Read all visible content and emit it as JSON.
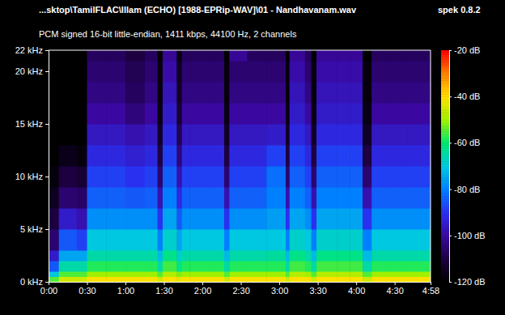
{
  "chart_data": {
    "type": "heatmap",
    "title": "...sktop\\TamilFLAC\\Illam (ECHO) [1988-EPRip-WAV]\\01 - Nandhavanam.wav",
    "subtitle": "PCM signed 16-bit little-endian, 1411 kbps, 44100 Hz, 2 channels",
    "annotations": [
      "spek 0.8.2"
    ],
    "xlim": [
      0,
      298
    ],
    "ylim": [
      0,
      22
    ],
    "xticks": [
      {
        "value": 0,
        "label": "0:00"
      },
      {
        "value": 30,
        "label": "0:30"
      },
      {
        "value": 60,
        "label": "1:00"
      },
      {
        "value": 90,
        "label": "1:30"
      },
      {
        "value": 120,
        "label": "2:00"
      },
      {
        "value": 150,
        "label": "2:30"
      },
      {
        "value": 180,
        "label": "3:00"
      },
      {
        "value": 210,
        "label": "3:30"
      },
      {
        "value": 240,
        "label": "4:00"
      },
      {
        "value": 270,
        "label": "4:30"
      },
      {
        "value": 298,
        "label": "4:58"
      }
    ],
    "yticks": [
      {
        "value": 0,
        "label": "0 kHz"
      },
      {
        "value": 5,
        "label": "5 kHz"
      },
      {
        "value": 10,
        "label": "10 kHz"
      },
      {
        "value": 15,
        "label": "15 kHz"
      },
      {
        "value": 20,
        "label": "20 kHz"
      },
      {
        "value": 22,
        "label": "22 kHz"
      }
    ],
    "x_edges": [
      0,
      8,
      15,
      22,
      30,
      45,
      60,
      75,
      85,
      89,
      100,
      104,
      110,
      125,
      137,
      141,
      155,
      170,
      185,
      188,
      200,
      205,
      209,
      225,
      235,
      245,
      252,
      265,
      280,
      298
    ],
    "y_edges": [
      0,
      0.5,
      1,
      2,
      3,
      5,
      7,
      9,
      11,
      13,
      15,
      17,
      19,
      21,
      22
    ],
    "z": [
      [
        -55,
        -45,
        -45,
        -45,
        -40,
        -40,
        -40,
        -40,
        -45,
        -40,
        -42,
        -40,
        -40,
        -40,
        -45,
        -40,
        -40,
        -40,
        -45,
        -40,
        -40,
        -45,
        -40,
        -40,
        -40,
        -45,
        -40,
        -40,
        -40
      ],
      [
        -70,
        -55,
        -55,
        -55,
        -50,
        -50,
        -50,
        -50,
        -55,
        -48,
        -52,
        -50,
        -50,
        -50,
        -55,
        -50,
        -50,
        -50,
        -55,
        -48,
        -50,
        -55,
        -48,
        -48,
        -48,
        -55,
        -50,
        -50,
        -50
      ],
      [
        -85,
        -65,
        -65,
        -65,
        -58,
        -58,
        -58,
        -58,
        -65,
        -56,
        -62,
        -58,
        -58,
        -58,
        -65,
        -58,
        -58,
        -58,
        -65,
        -56,
        -58,
        -65,
        -56,
        -56,
        -56,
        -65,
        -58,
        -58,
        -58
      ],
      [
        -95,
        -75,
        -75,
        -75,
        -65,
        -65,
        -65,
        -65,
        -72,
        -62,
        -68,
        -65,
        -65,
        -65,
        -72,
        -65,
        -65,
        -64,
        -72,
        -62,
        -65,
        -72,
        -62,
        -62,
        -62,
        -72,
        -65,
        -65,
        -65
      ],
      [
        -105,
        -85,
        -85,
        -88,
        -70,
        -70,
        -70,
        -70,
        -80,
        -68,
        -75,
        -70,
        -70,
        -70,
        -80,
        -70,
        -70,
        -70,
        -80,
        -68,
        -70,
        -80,
        -68,
        -68,
        -68,
        -80,
        -70,
        -70,
        -70
      ],
      [
        -110,
        -95,
        -95,
        -98,
        -78,
        -78,
        -78,
        -78,
        -90,
        -75,
        -85,
        -78,
        -78,
        -78,
        -90,
        -78,
        -78,
        -76,
        -90,
        -75,
        -78,
        -90,
        -75,
        -75,
        -75,
        -90,
        -78,
        -78,
        -78
      ],
      [
        -115,
        -105,
        -105,
        -106,
        -84,
        -84,
        -85,
        -84,
        -98,
        -80,
        -92,
        -84,
        -84,
        -84,
        -98,
        -84,
        -84,
        -80,
        -98,
        -80,
        -84,
        -98,
        -80,
        -80,
        -80,
        -98,
        -84,
        -84,
        -84
      ],
      [
        -118,
        -110,
        -110,
        -112,
        -88,
        -88,
        -90,
        -88,
        -105,
        -84,
        -98,
        -88,
        -88,
        -88,
        -105,
        -88,
        -88,
        -82,
        -105,
        -84,
        -88,
        -105,
        -84,
        -84,
        -84,
        -105,
        -88,
        -88,
        -88
      ],
      [
        -120,
        -116,
        -116,
        -118,
        -92,
        -92,
        -94,
        -92,
        -110,
        -88,
        -104,
        -92,
        -92,
        -92,
        -110,
        -92,
        -92,
        -88,
        -110,
        -88,
        -92,
        -110,
        -88,
        -88,
        -88,
        -110,
        -92,
        -92,
        -92
      ],
      [
        -120,
        -120,
        -120,
        -120,
        -96,
        -96,
        -98,
        -96,
        -114,
        -92,
        -108,
        -96,
        -96,
        -96,
        -114,
        -96,
        -96,
        -95,
        -114,
        -92,
        -96,
        -114,
        -92,
        -92,
        -92,
        -114,
        -96,
        -96,
        -96
      ],
      [
        -120,
        -120,
        -120,
        -120,
        -100,
        -100,
        -104,
        -100,
        -117,
        -95,
        -112,
        -100,
        -100,
        -100,
        -117,
        -100,
        -100,
        -100,
        -117,
        -95,
        -100,
        -117,
        -95,
        -95,
        -95,
        -117,
        -100,
        -100,
        -100
      ],
      [
        -120,
        -120,
        -120,
        -120,
        -103,
        -103,
        -107,
        -103,
        -118,
        -97,
        -114,
        -103,
        -103,
        -103,
        -118,
        -103,
        -103,
        -103,
        -118,
        -97,
        -103,
        -118,
        -97,
        -97,
        -97,
        -118,
        -103,
        -103,
        -103
      ],
      [
        -120,
        -120,
        -120,
        -120,
        -105,
        -105,
        -108,
        -105,
        -118,
        -99,
        -115,
        -105,
        -105,
        -105,
        -118,
        -105,
        -105,
        -105,
        -118,
        -99,
        -105,
        -118,
        -99,
        -99,
        -99,
        -118,
        -105,
        -105,
        -105
      ],
      [
        -120,
        -120,
        -120,
        -120,
        -107,
        -107,
        -110,
        -107,
        -120,
        -101,
        -117,
        -107,
        -107,
        -107,
        -120,
        -101,
        -107,
        -107,
        -120,
        -101,
        -107,
        -120,
        -101,
        -101,
        -101,
        -120,
        -107,
        -107,
        -107
      ]
    ],
    "colorbar": {
      "range": [
        -120,
        -20
      ],
      "ticks": [
        {
          "value": -20,
          "label": "-20 dB"
        },
        {
          "value": -40,
          "label": "-40 dB"
        },
        {
          "value": -60,
          "label": "-60 dB"
        },
        {
          "value": -80,
          "label": "-80 dB"
        },
        {
          "value": -100,
          "label": "-100 dB"
        },
        {
          "value": -120,
          "label": "-120 dB"
        }
      ]
    }
  }
}
